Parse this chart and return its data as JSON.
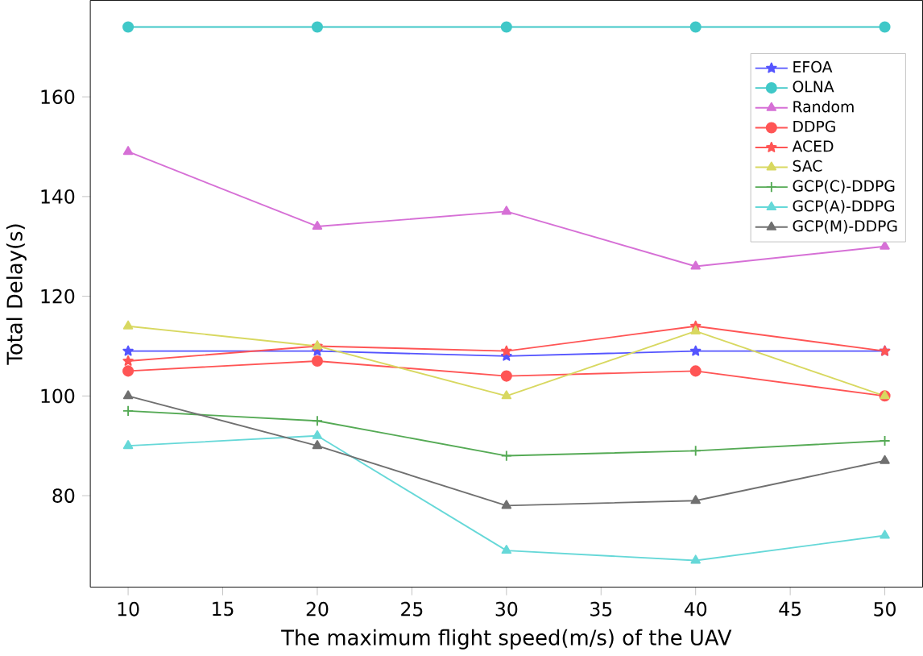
{
  "chart_data": {
    "type": "line",
    "xlabel": "The maximum flight speed(m/s) of the UAV",
    "ylabel": "Total Delay(s)",
    "x": [
      10,
      20,
      30,
      40,
      50
    ],
    "xlim": [
      8,
      52
    ],
    "ylim": [
      61.65,
      179.35
    ],
    "xticks": [
      10,
      15,
      20,
      25,
      30,
      35,
      40,
      45,
      50
    ],
    "yticks": [
      80,
      100,
      120,
      140,
      160
    ],
    "grid": false,
    "legend": "top right",
    "series": [
      {
        "name": "EFOA",
        "color": "#5555ff",
        "marker": "star",
        "values": [
          109,
          109,
          108,
          109,
          109
        ]
      },
      {
        "name": "OLNA",
        "color": "#40c8c8",
        "marker": "circle",
        "values": [
          174,
          174,
          174,
          174,
          174
        ]
      },
      {
        "name": "Random",
        "color": "#d670d6",
        "marker": "triangle",
        "values": [
          149,
          134,
          137,
          126,
          130
        ]
      },
      {
        "name": "DDPG",
        "color": "#ff5555",
        "marker": "circle",
        "values": [
          105,
          107,
          104,
          105,
          100
        ]
      },
      {
        "name": "ACED",
        "color": "#ff5555",
        "marker": "star",
        "values": [
          107,
          110,
          109,
          114,
          109
        ]
      },
      {
        "name": "SAC",
        "color": "#d8d860",
        "marker": "triangle",
        "values": [
          114,
          110,
          100,
          113,
          100
        ]
      },
      {
        "name": "GCP(C)-DDPG",
        "color": "#55aa55",
        "marker": "cross",
        "values": [
          97,
          95,
          88,
          89,
          91
        ]
      },
      {
        "name": "GCP(A)-DDPG",
        "color": "#66d8d8",
        "marker": "triangle",
        "values": [
          90,
          92,
          69,
          67,
          72
        ]
      },
      {
        "name": "GCP(M)-DDPG",
        "color": "#707070",
        "marker": "triangle",
        "values": [
          100,
          90,
          78,
          79,
          87
        ]
      }
    ]
  }
}
